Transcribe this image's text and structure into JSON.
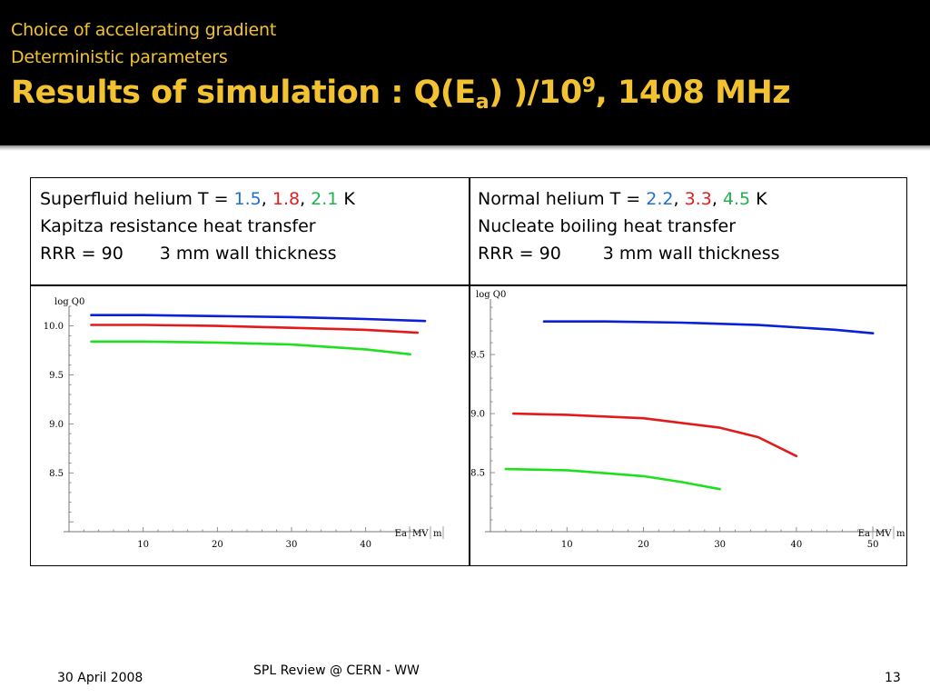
{
  "header": {
    "subtitle1": "Choice of accelerating gradient",
    "subtitle2": "Deterministic parameters",
    "title_prefix": "Results of simulation : Q(E",
    "title_sub": "a",
    "title_mid": ") )/10",
    "title_sup": "9",
    "title_suffix": ", 1408 MHz"
  },
  "left_cell": {
    "line1_prefix": "Superfluid helium T = ",
    "t1": "1.5",
    "sep1": ", ",
    "t2": "1.8",
    "sep2": ", ",
    "t3": "2.1",
    "unit": " K",
    "line2": "Kapitza resistance heat transfer",
    "line3a": "RRR = 90",
    "line3b": "3 mm wall thickness"
  },
  "right_cell": {
    "line1_prefix": "Normal helium T = ",
    "t1": "2.2",
    "sep1": ", ",
    "t2": "3.3",
    "sep2": ", ",
    "t3": "4.5",
    "unit": " K",
    "line2": "Nucleate boiling heat transfer",
    "line3a": "RRR = 90",
    "line3b": "3 mm wall thickness"
  },
  "colors": {
    "title": "#f2c230",
    "blue": "#1f6fd1",
    "red": "#e01f1f",
    "green": "#22b14c",
    "curve_blue": "#0a1fd6",
    "curve_red": "#e21a1a",
    "curve_green": "#1fe01f"
  },
  "chart_data": [
    {
      "type": "line",
      "ylabel": "log Q0",
      "xlabel": "Ea",
      "xlabel_units": [
        "MV",
        "m"
      ],
      "xticks": [
        10,
        20,
        30,
        40
      ],
      "yticks": [
        "8.5",
        "9.0",
        "9.5",
        "10.0"
      ],
      "xlim": [
        0,
        48
      ],
      "ylim": [
        7.9,
        10.2
      ],
      "series": [
        {
          "color": "#0a1fd6",
          "x": [
            3,
            10,
            20,
            30,
            40,
            48
          ],
          "y": [
            10.11,
            10.11,
            10.1,
            10.09,
            10.07,
            10.05
          ]
        },
        {
          "color": "#e21a1a",
          "x": [
            3,
            10,
            20,
            30,
            40,
            47
          ],
          "y": [
            10.01,
            10.01,
            10.0,
            9.98,
            9.96,
            9.93
          ]
        },
        {
          "color": "#1fe01f",
          "x": [
            3,
            10,
            20,
            30,
            40,
            46
          ],
          "y": [
            9.84,
            9.84,
            9.83,
            9.81,
            9.76,
            9.71
          ]
        }
      ]
    },
    {
      "type": "line",
      "ylabel": "log Q0",
      "xlabel": "Ea",
      "xlabel_units": [
        "MV",
        "m"
      ],
      "xticks": [
        10,
        20,
        30,
        40,
        50
      ],
      "yticks": [
        "8.5",
        "9.0",
        "9.5"
      ],
      "xlim": [
        0,
        52
      ],
      "ylim": [
        8.0,
        9.97
      ],
      "series": [
        {
          "color": "#0a1fd6",
          "x": [
            7,
            15,
            25,
            35,
            45,
            50
          ],
          "y": [
            9.78,
            9.78,
            9.77,
            9.75,
            9.71,
            9.68
          ]
        },
        {
          "color": "#e21a1a",
          "x": [
            3,
            10,
            20,
            30,
            35,
            40
          ],
          "y": [
            9.0,
            8.99,
            8.96,
            8.88,
            8.8,
            8.64
          ]
        },
        {
          "color": "#1fe01f",
          "x": [
            2,
            10,
            20,
            25,
            30
          ],
          "y": [
            8.53,
            8.52,
            8.47,
            8.42,
            8.36
          ]
        }
      ]
    }
  ],
  "footer": {
    "date": "30 April 2008",
    "center": "SPL Review  @ CERN - WW",
    "page": "13"
  }
}
